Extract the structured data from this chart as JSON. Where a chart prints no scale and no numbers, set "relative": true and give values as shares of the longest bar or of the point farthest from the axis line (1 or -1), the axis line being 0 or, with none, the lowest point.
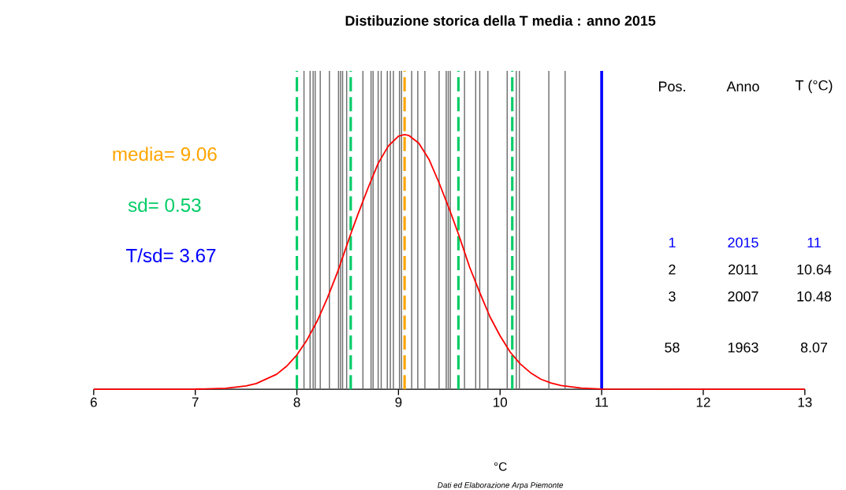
{
  "chart_data": {
    "type": "line",
    "relative": true,
    "title": "Distibuzione storica della  T media : anno 2015",
    "xlabel": "°C",
    "xlim": [
      6,
      13
    ],
    "xticks": [
      6,
      7,
      8,
      9,
      10,
      11,
      12,
      13
    ],
    "grid": false,
    "marker": "none",
    "series": [
      {
        "color": "#ff0000",
        "line_style": "solid",
        "x": [
          6,
          7,
          7.3,
          7.5,
          7.6,
          7.8,
          7.9,
          8,
          8.1,
          8.2,
          8.3,
          8.4,
          8.53,
          8.6,
          8.7,
          8.8,
          8.9,
          9.0,
          9.06,
          9.1,
          9.2,
          9.3,
          9.4,
          9.5,
          9.59,
          9.7,
          9.8,
          9.9,
          10,
          10.1,
          10.2,
          10.3,
          10.4,
          10.5,
          10.6,
          10.8,
          11,
          12,
          13
        ],
        "values": [
          0,
          0.0005,
          0.004,
          0.013,
          0.0225,
          0.059,
          0.091,
          0.135,
          0.194,
          0.268,
          0.358,
          0.46,
          0.61,
          0.686,
          0.79,
          0.887,
          0.955,
          0.994,
          1,
          0.997,
          0.966,
          0.903,
          0.81,
          0.708,
          0.61,
          0.48,
          0.38,
          0.285,
          0.21,
          0.146,
          0.099,
          0.065,
          0.04,
          0.025,
          0.015,
          0.005,
          0.001,
          0,
          0
        ]
      }
    ],
    "ref_lines": [
      {
        "axis": "x",
        "value": 8.07,
        "color": "#6e6e6e"
      },
      {
        "axis": "x",
        "value": 8.13,
        "color": "#6e6e6e"
      },
      {
        "axis": "x",
        "value": 8.16,
        "color": "#6e6e6e"
      },
      {
        "axis": "x",
        "value": 8.18,
        "color": "#6e6e6e"
      },
      {
        "axis": "x",
        "value": 8.23,
        "color": "#6e6e6e"
      },
      {
        "axis": "x",
        "value": 8.32,
        "color": "#6e6e6e"
      },
      {
        "axis": "x",
        "value": 8.41,
        "color": "#6e6e6e"
      },
      {
        "axis": "x",
        "value": 8.43,
        "color": "#6e6e6e"
      },
      {
        "axis": "x",
        "value": 8.45,
        "color": "#6e6e6e"
      },
      {
        "axis": "x",
        "value": 8.49,
        "color": "#6e6e6e"
      },
      {
        "axis": "x",
        "value": 8.65,
        "color": "#6e6e6e"
      },
      {
        "axis": "x",
        "value": 8.73,
        "color": "#6e6e6e"
      },
      {
        "axis": "x",
        "value": 8.75,
        "color": "#6e6e6e"
      },
      {
        "axis": "x",
        "value": 8.8,
        "color": "#6e6e6e"
      },
      {
        "axis": "x",
        "value": 8.83,
        "color": "#6e6e6e"
      },
      {
        "axis": "x",
        "value": 8.89,
        "color": "#6e6e6e"
      },
      {
        "axis": "x",
        "value": 8.92,
        "color": "#6e6e6e"
      },
      {
        "axis": "x",
        "value": 8.95,
        "color": "#6e6e6e"
      },
      {
        "axis": "x",
        "value": 9.01,
        "color": "#6e6e6e"
      },
      {
        "axis": "x",
        "value": 9.03,
        "color": "#6e6e6e"
      },
      {
        "axis": "x",
        "value": 9.13,
        "color": "#6e6e6e"
      },
      {
        "axis": "x",
        "value": 9.19,
        "color": "#6e6e6e"
      },
      {
        "axis": "x",
        "value": 9.26,
        "color": "#6e6e6e"
      },
      {
        "axis": "x",
        "value": 9.4,
        "color": "#6e6e6e"
      },
      {
        "axis": "x",
        "value": 9.47,
        "color": "#6e6e6e"
      },
      {
        "axis": "x",
        "value": 9.49,
        "color": "#6e6e6e"
      },
      {
        "axis": "x",
        "value": 9.51,
        "color": "#6e6e6e"
      },
      {
        "axis": "x",
        "value": 9.65,
        "color": "#6e6e6e"
      },
      {
        "axis": "x",
        "value": 9.76,
        "color": "#6e6e6e"
      },
      {
        "axis": "x",
        "value": 9.8,
        "color": "#6e6e6e"
      },
      {
        "axis": "x",
        "value": 9.88,
        "color": "#6e6e6e"
      },
      {
        "axis": "x",
        "value": 10.07,
        "color": "#6e6e6e"
      },
      {
        "axis": "x",
        "value": 10.16,
        "color": "#6e6e6e"
      },
      {
        "axis": "x",
        "value": 10.19,
        "color": "#6e6e6e"
      },
      {
        "axis": "x",
        "value": 10.48,
        "color": "#6e6e6e"
      },
      {
        "axis": "x",
        "value": 10.64,
        "color": "#6e6e6e"
      },
      {
        "axis": "x",
        "value": 8.0,
        "color": "#00cc66",
        "line_style": "dashed"
      },
      {
        "axis": "x",
        "value": 8.53,
        "color": "#00cc66",
        "line_style": "dashed"
      },
      {
        "axis": "x",
        "value": 9.59,
        "color": "#00cc66",
        "line_style": "dashed"
      },
      {
        "axis": "x",
        "value": 10.12,
        "color": "#00cc66",
        "line_style": "dashed"
      },
      {
        "axis": "x",
        "value": 9.06,
        "color": "#ffa500",
        "line_style": "dashed"
      },
      {
        "axis": "x",
        "value": 11,
        "color": "#0000ff",
        "line_style": "solid"
      }
    ],
    "annotations": [
      "media= 9.06",
      "sd= 0.53",
      "T/sd= 3.67",
      "Pos.",
      "Anno",
      "T (°C)",
      "1",
      "2015",
      "11",
      "2",
      "2011",
      "10.64",
      "3",
      "2007",
      "10.48",
      "58",
      "1963",
      "8.07",
      "Dati ed Elaborazione Arpa Piemonte"
    ]
  }
}
